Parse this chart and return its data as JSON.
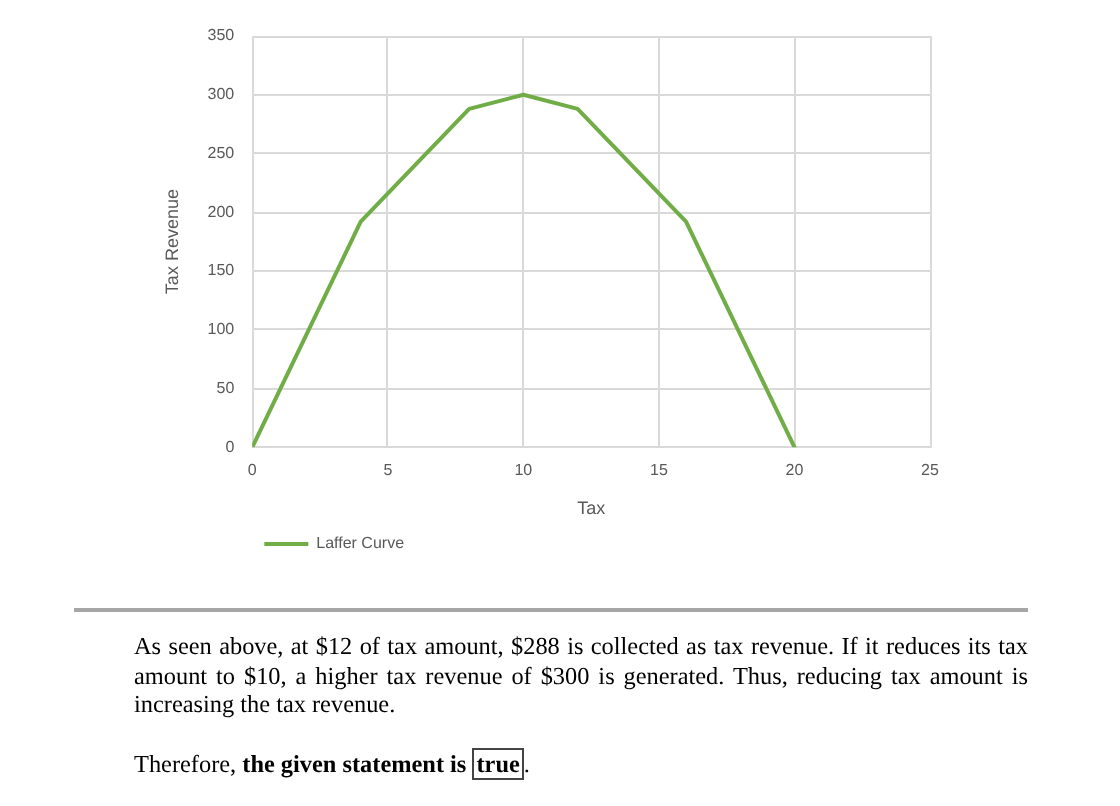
{
  "chart_data": {
    "type": "line",
    "xlabel": "Tax",
    "ylabel": "Tax Revenue",
    "x": [
      0,
      4,
      8,
      10,
      12,
      16,
      20
    ],
    "series": [
      {
        "name": "Laffer Curve",
        "color": "#70ad47",
        "values": [
          0,
          192,
          288,
          300,
          288,
          192,
          0
        ]
      }
    ],
    "xlim": [
      0,
      25
    ],
    "xticks": [
      0,
      5,
      10,
      15,
      20,
      25
    ],
    "ylim": [
      0,
      350
    ],
    "yticks": [
      0,
      50,
      100,
      150,
      200,
      250,
      300,
      350
    ],
    "grid": true,
    "legend": "bottom left",
    "marker": "none",
    "line_style": "solid",
    "annotations": [
      "As seen above, at $12 of tax amount, $288 is collected as tax revenue. If it reduces its tax amount to $10, a higher tax revenue of $300 is generated. Thus, reducing tax amount is increasing the tax revenue.",
      "Therefore, ",
      "the given statement is ",
      "true",
      "."
    ]
  }
}
